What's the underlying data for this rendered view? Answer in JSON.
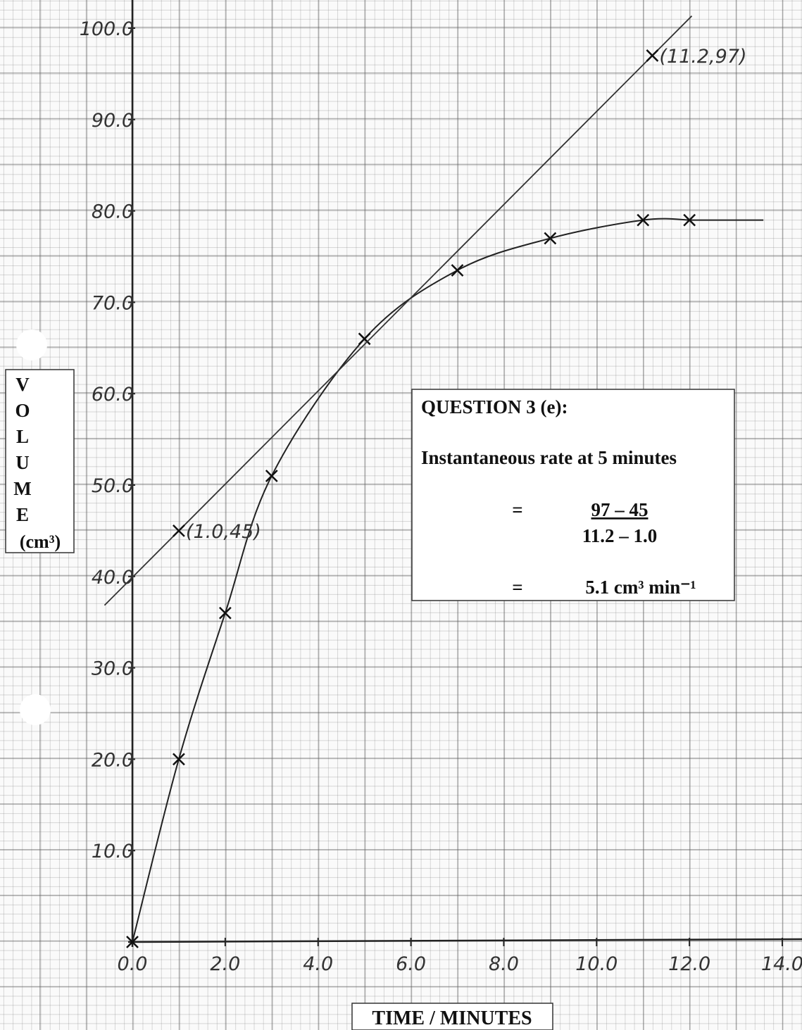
{
  "chart_data": {
    "type": "line",
    "series": [
      {
        "name": null,
        "color": "#222222",
        "x": [
          0,
          1,
          2,
          3,
          5,
          7,
          9,
          11,
          12
        ],
        "values": [
          0,
          20,
          36,
          51,
          66,
          73.5,
          77,
          79,
          79
        ]
      }
    ],
    "tangent": {
      "x": [
        1.0,
        11.2
      ],
      "y": [
        45,
        97
      ],
      "labels": [
        "(1.0,45)",
        "(11.2,97)"
      ]
    },
    "xlim": [
      0,
      14
    ],
    "ylim": [
      0,
      100
    ],
    "xticks": [
      {
        "value": 0,
        "label": "0.0"
      },
      {
        "value": 2,
        "label": "2.0"
      },
      {
        "value": 4,
        "label": "4.0"
      },
      {
        "value": 6,
        "label": "6.0"
      },
      {
        "value": 8,
        "label": "8.0"
      },
      {
        "value": 10,
        "label": "10.0"
      },
      {
        "value": 12,
        "label": "12.0"
      },
      {
        "value": 14,
        "label": "14.0"
      }
    ],
    "yticks": [
      {
        "value": 10,
        "label": "10.0"
      },
      {
        "value": 20,
        "label": "20.0"
      },
      {
        "value": 30,
        "label": "30.0"
      },
      {
        "value": 40,
        "label": "40.0"
      },
      {
        "value": 50,
        "label": "50.0"
      },
      {
        "value": 60,
        "label": "60.0"
      },
      {
        "value": 70,
        "label": "70.0"
      },
      {
        "value": 80,
        "label": "80.0"
      },
      {
        "value": 90,
        "label": "90.0"
      },
      {
        "value": 100,
        "label": "100.0"
      }
    ],
    "ylabel_letters": [
      "V",
      "O",
      "L",
      "U",
      "M",
      "E"
    ],
    "ylabel_unit": "(cm³)",
    "xlabel": "TIME / MINUTES",
    "box": {
      "title": "QUESTION 3 (e):",
      "line": "Instantaneous rate at 5 minutes",
      "eq1": "=",
      "numerator": "97 – 45",
      "denominator": "11.2 – 1.0",
      "eq2": "=",
      "result": "5.1 cm³ min⁻¹"
    }
  }
}
